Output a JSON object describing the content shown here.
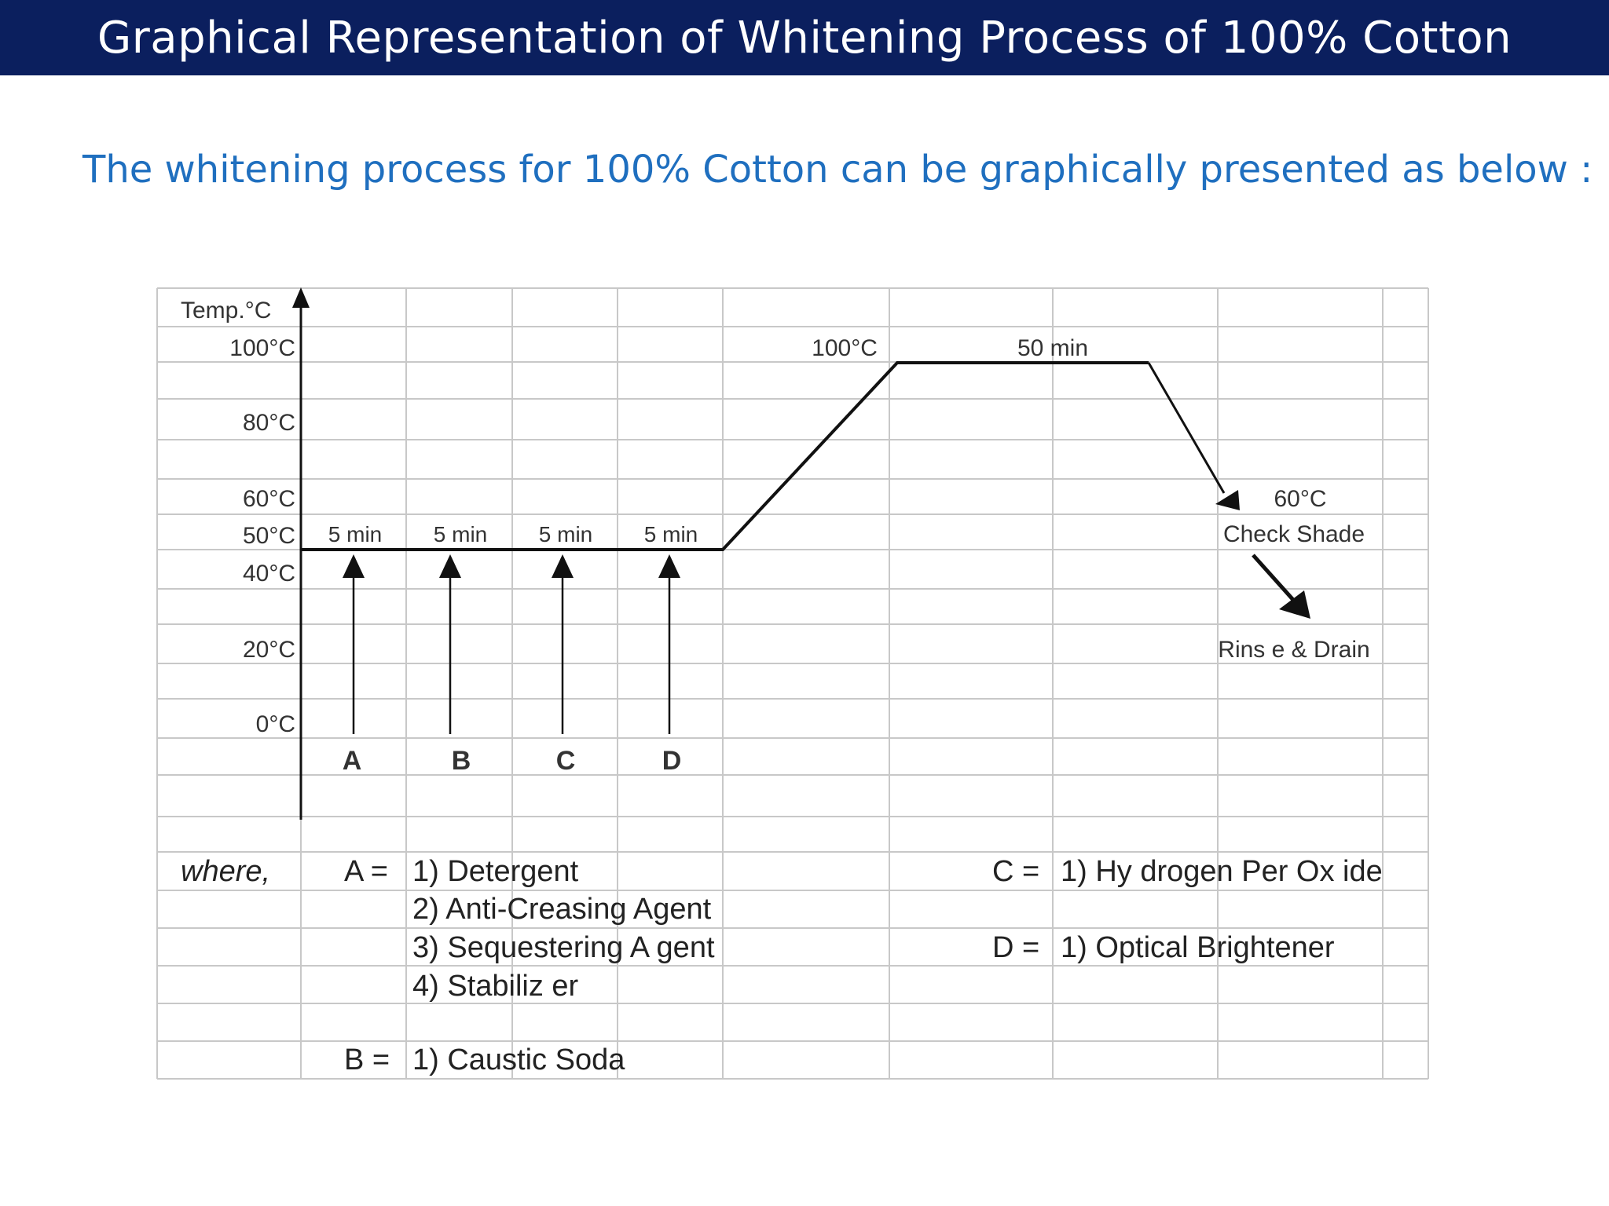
{
  "title": "Graphical Representation of Whitening Process of 100% Cotton",
  "subtitle": "The whitening process for 100% Cotton can be graphically presented as below :",
  "diagram": {
    "y_axis_title": "Temp.°C",
    "y_ticks": [
      "100°C",
      "80°C",
      "60°C",
      "50°C",
      "40°C",
      "20°C",
      "0°C"
    ],
    "step_times": [
      "5 min",
      "5 min",
      "5 min",
      "5 min"
    ],
    "peak_label": "100°C",
    "hold_label": "50 min",
    "cool_temp_label": "60°C",
    "check_label": "Check Shade",
    "drain_label": "Rins e & Drain",
    "additions": [
      "A",
      "B",
      "C",
      "D"
    ],
    "colors": {
      "title_bar": "#0b1f5e",
      "subtitle": "#1f6fbf",
      "grid": "#c8c8c8",
      "line": "#111111"
    }
  },
  "legend": {
    "where": "where,",
    "A": {
      "key": "A =",
      "items": [
        "1) Detergent",
        "2) Anti-Creasing Agent",
        "3) Sequestering A gent",
        "4) Stabiliz er"
      ]
    },
    "B": {
      "key": "B =",
      "items": [
        "1) Caustic Soda"
      ]
    },
    "C": {
      "key": "C =",
      "items": [
        "1) Hy drogen Per Ox ide"
      ]
    },
    "D": {
      "key": "D =",
      "items": [
        "1) Optical Brightener"
      ]
    }
  }
}
